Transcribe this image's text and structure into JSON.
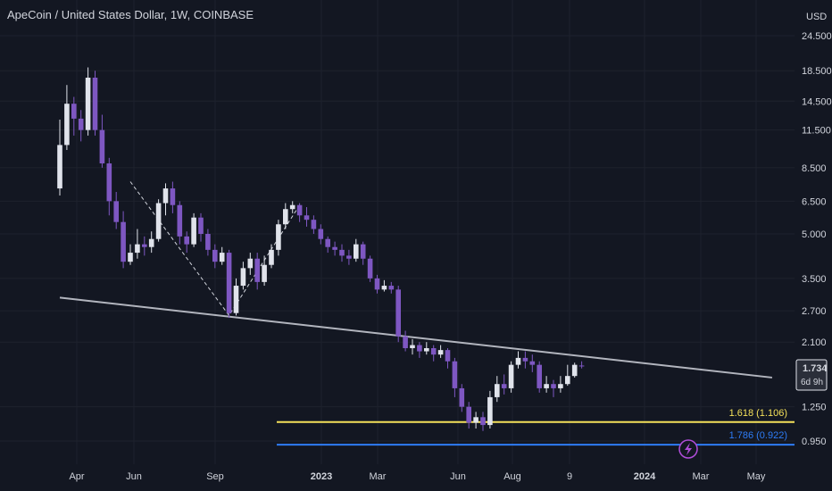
{
  "header": {
    "title": "ApeCoin / United States Dollar, 1W, COINBASE",
    "currency": "USD"
  },
  "colors": {
    "background": "#131722",
    "up": "#e0e3eb",
    "down": "#7e57c2",
    "trendline": "#b2b5be",
    "fib1": "#f5e15a",
    "fib2": "#2e7cf6",
    "lightning": "#b04dd9"
  },
  "chart_data": {
    "type": "candlestick",
    "scale": "log",
    "y_ticks": [
      "24.500",
      "18.500",
      "14.500",
      "11.500",
      "8.500",
      "6.500",
      "5.000",
      "3.500",
      "2.700",
      "2.100",
      "1.250",
      "0.950"
    ],
    "x_ticks": [
      "Apr",
      "Jun",
      "Sep",
      "2023",
      "Mar",
      "Jun",
      "Aug",
      "9",
      "2024",
      "Mar",
      "May"
    ],
    "last_price": "1.734",
    "countdown": "6d 9h",
    "fib_levels": [
      {
        "label": "1.618 (1.106)",
        "value": 1.106
      },
      {
        "label": "1.786 (0.922)",
        "value": 0.922
      }
    ],
    "trendline": [
      {
        "week": 0,
        "value": 3.0
      },
      {
        "week": 101,
        "value": 1.58
      }
    ],
    "zigzag": [
      [
        10,
        7.6
      ],
      [
        24,
        2.6
      ],
      [
        34,
        6.3
      ]
    ],
    "candles": [
      [
        7.2,
        10.2,
        12.5,
        6.8
      ],
      [
        10.2,
        14.2,
        16.5,
        9.8
      ],
      [
        14.2,
        12.6,
        15.0,
        11.0
      ],
      [
        12.6,
        11.5,
        13.5,
        10.5
      ],
      [
        11.5,
        17.5,
        19.0,
        11.0
      ],
      [
        17.5,
        11.5,
        18.5,
        11.0
      ],
      [
        11.5,
        8.8,
        13.0,
        8.5
      ],
      [
        8.8,
        6.5,
        9.2,
        5.8
      ],
      [
        6.5,
        5.5,
        7.0,
        5.2
      ],
      [
        5.5,
        4.0,
        6.0,
        3.8
      ],
      [
        4.0,
        4.3,
        4.6,
        3.9
      ],
      [
        4.3,
        4.6,
        5.2,
        4.1
      ],
      [
        4.6,
        4.5,
        4.9,
        4.2
      ],
      [
        4.5,
        4.8,
        5.1,
        4.3
      ],
      [
        4.8,
        6.4,
        6.6,
        4.7
      ],
      [
        6.4,
        7.2,
        7.5,
        5.8
      ],
      [
        7.2,
        6.3,
        7.6,
        5.9
      ],
      [
        6.3,
        4.9,
        6.5,
        4.6
      ],
      [
        4.9,
        4.6,
        5.1,
        4.3
      ],
      [
        4.6,
        5.7,
        5.9,
        4.5
      ],
      [
        5.7,
        5.0,
        5.9,
        4.7
      ],
      [
        5.0,
        4.4,
        5.2,
        4.2
      ],
      [
        4.4,
        4.0,
        4.6,
        3.8
      ],
      [
        4.0,
        4.3,
        4.5,
        3.9
      ],
      [
        4.3,
        2.65,
        4.4,
        2.55
      ],
      [
        2.65,
        3.3,
        3.5,
        2.6
      ],
      [
        3.3,
        3.8,
        4.0,
        3.2
      ],
      [
        3.8,
        4.1,
        4.3,
        3.6
      ],
      [
        4.1,
        3.4,
        4.3,
        3.2
      ],
      [
        3.4,
        3.9,
        4.2,
        3.3
      ],
      [
        3.9,
        4.4,
        4.6,
        3.8
      ],
      [
        4.4,
        5.4,
        5.6,
        4.2
      ],
      [
        5.4,
        6.1,
        6.4,
        5.2
      ],
      [
        6.1,
        6.3,
        6.5,
        5.9
      ],
      [
        6.3,
        5.8,
        6.4,
        5.5
      ],
      [
        5.8,
        5.6,
        6.2,
        5.3
      ],
      [
        5.6,
        5.2,
        5.8,
        5.0
      ],
      [
        5.2,
        4.8,
        5.4,
        4.6
      ],
      [
        4.8,
        4.5,
        4.9,
        4.3
      ],
      [
        4.5,
        4.4,
        4.7,
        4.2
      ],
      [
        4.4,
        4.2,
        4.6,
        4.0
      ],
      [
        4.2,
        4.1,
        4.4,
        3.9
      ],
      [
        4.1,
        4.6,
        4.8,
        4.0
      ],
      [
        4.6,
        4.1,
        4.7,
        3.9
      ],
      [
        4.1,
        3.5,
        4.2,
        3.4
      ],
      [
        3.5,
        3.2,
        3.6,
        3.1
      ],
      [
        3.2,
        3.3,
        3.45,
        3.15
      ],
      [
        3.3,
        3.2,
        3.4,
        3.1
      ],
      [
        3.2,
        2.2,
        3.3,
        2.1
      ],
      [
        2.2,
        2.0,
        2.3,
        1.95
      ],
      [
        2.0,
        2.05,
        2.15,
        1.9
      ],
      [
        2.05,
        1.95,
        2.1,
        1.85
      ],
      [
        1.95,
        2.0,
        2.1,
        1.9
      ],
      [
        2.0,
        1.9,
        2.05,
        1.8
      ],
      [
        1.9,
        1.97,
        2.05,
        1.85
      ],
      [
        1.97,
        1.8,
        2.0,
        1.7
      ],
      [
        1.8,
        1.45,
        1.85,
        1.35
      ],
      [
        1.45,
        1.25,
        1.5,
        1.2
      ],
      [
        1.25,
        1.1,
        1.3,
        1.05
      ],
      [
        1.1,
        1.15,
        1.2,
        1.05
      ],
      [
        1.15,
        1.08,
        1.2,
        1.03
      ],
      [
        1.08,
        1.35,
        1.42,
        1.05
      ],
      [
        1.35,
        1.5,
        1.6,
        1.3
      ],
      [
        1.5,
        1.45,
        1.62,
        1.38
      ],
      [
        1.45,
        1.75,
        1.8,
        1.4
      ],
      [
        1.75,
        1.85,
        1.95,
        1.7
      ],
      [
        1.85,
        1.8,
        1.95,
        1.7
      ],
      [
        1.8,
        1.75,
        1.9,
        1.65
      ],
      [
        1.75,
        1.45,
        1.8,
        1.4
      ],
      [
        1.45,
        1.5,
        1.6,
        1.4
      ],
      [
        1.5,
        1.45,
        1.55,
        1.35
      ],
      [
        1.45,
        1.5,
        1.6,
        1.4
      ],
      [
        1.5,
        1.6,
        1.75,
        1.48
      ],
      [
        1.6,
        1.75,
        1.78,
        1.58
      ],
      [
        1.74,
        1.734,
        1.8,
        1.7
      ]
    ]
  }
}
